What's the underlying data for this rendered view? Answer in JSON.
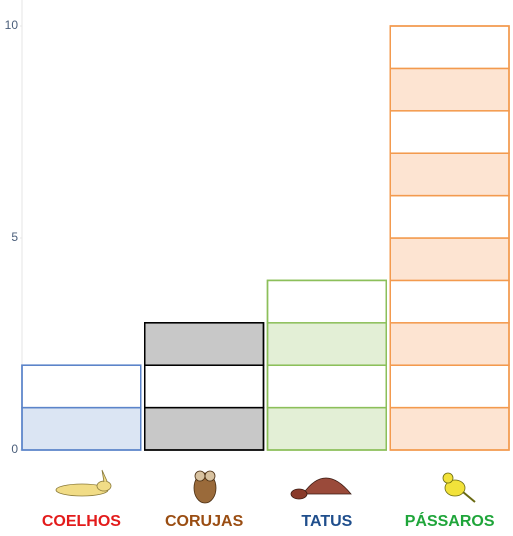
{
  "chart_data": {
    "type": "unit-bar",
    "categories": [
      "COELHOS",
      "CORUJAS",
      "TATUS",
      "PÁSSAROS"
    ],
    "values": [
      2,
      3,
      4,
      10
    ],
    "colors": [
      "#5b84c9",
      "#000000",
      "#8cbf5a",
      "#f39a4e"
    ],
    "fills": [
      "#dbe5f3",
      "#c8c8c8",
      "#e3efd6",
      "#fde4d2"
    ],
    "label_colors": [
      "#e31b1b",
      "#9a4d12",
      "#1f4e8c",
      "#1fa53a"
    ],
    "ylim": [
      0,
      10
    ],
    "yticks": [
      0,
      5,
      10
    ],
    "grid": false
  }
}
